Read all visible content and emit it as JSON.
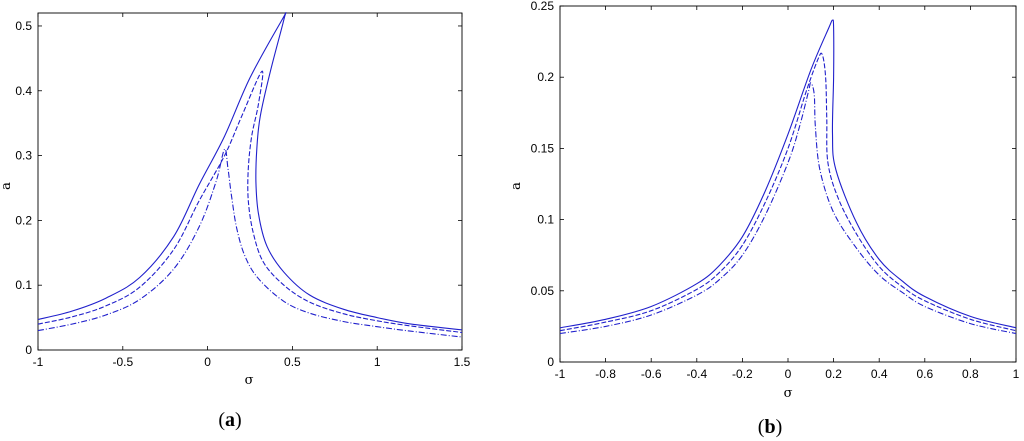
{
  "chart_data": [
    {
      "type": "line",
      "panel_label": {
        "open": "(",
        "letter": "a",
        "close": ")"
      },
      "xlabel": "σ",
      "ylabel": "a",
      "xlim": [
        -1,
        1.5
      ],
      "ylim": [
        0,
        0.52
      ],
      "x_ticks": [
        -1,
        -0.5,
        0,
        0.5,
        1,
        1.5
      ],
      "x_tick_labels": [
        "-1",
        "-0.5",
        "0",
        "0.5",
        "1",
        "1.5"
      ],
      "y_ticks": [
        0,
        0.1,
        0.2,
        0.3,
        0.4,
        0.5
      ],
      "y_tick_labels": [
        "0",
        "0.1",
        "0.2",
        "0.3",
        "0.4",
        "0.5"
      ],
      "grid": false,
      "color": "#2020cc",
      "series": [
        {
          "style": "solid",
          "points": [
            [
              -1,
              0.047
            ],
            [
              -0.8,
              0.06
            ],
            [
              -0.6,
              0.08
            ],
            [
              -0.4,
              0.112
            ],
            [
              -0.2,
              0.175
            ],
            [
              -0.05,
              0.255
            ],
            [
              0.1,
              0.33
            ],
            [
              0.25,
              0.42
            ],
            [
              0.44,
              0.51
            ],
            [
              0.45,
              0.51
            ],
            [
              0.37,
              0.43
            ],
            [
              0.31,
              0.36
            ],
            [
              0.29,
              0.31
            ],
            [
              0.285,
              0.26
            ],
            [
              0.3,
              0.21
            ],
            [
              0.35,
              0.16
            ],
            [
              0.45,
              0.12
            ],
            [
              0.6,
              0.085
            ],
            [
              0.8,
              0.063
            ],
            [
              1,
              0.05
            ],
            [
              1.2,
              0.04
            ],
            [
              1.5,
              0.031
            ]
          ]
        },
        {
          "style": "dashed",
          "points": [
            [
              -1,
              0.04
            ],
            [
              -0.8,
              0.051
            ],
            [
              -0.6,
              0.068
            ],
            [
              -0.4,
              0.097
            ],
            [
              -0.2,
              0.155
            ],
            [
              -0.05,
              0.23
            ],
            [
              0.1,
              0.3
            ],
            [
              0.2,
              0.36
            ],
            [
              0.32,
              0.43
            ],
            [
              0.3,
              0.38
            ],
            [
              0.26,
              0.33
            ],
            [
              0.24,
              0.28
            ],
            [
              0.24,
              0.23
            ],
            [
              0.27,
              0.18
            ],
            [
              0.33,
              0.135
            ],
            [
              0.45,
              0.1
            ],
            [
              0.6,
              0.074
            ],
            [
              0.8,
              0.056
            ],
            [
              1,
              0.045
            ],
            [
              1.2,
              0.037
            ],
            [
              1.5,
              0.027
            ]
          ]
        },
        {
          "style": "dashdot",
          "points": [
            [
              -1,
              0.03
            ],
            [
              -0.8,
              0.04
            ],
            [
              -0.6,
              0.054
            ],
            [
              -0.4,
              0.078
            ],
            [
              -0.2,
              0.125
            ],
            [
              -0.05,
              0.19
            ],
            [
              0.05,
              0.26
            ],
            [
              0.1,
              0.31
            ],
            [
              0.12,
              0.28
            ],
            [
              0.14,
              0.24
            ],
            [
              0.17,
              0.19
            ],
            [
              0.22,
              0.145
            ],
            [
              0.3,
              0.11
            ],
            [
              0.45,
              0.075
            ],
            [
              0.6,
              0.057
            ],
            [
              0.8,
              0.044
            ],
            [
              1,
              0.036
            ],
            [
              1.2,
              0.029
            ],
            [
              1.5,
              0.02
            ]
          ]
        }
      ]
    },
    {
      "type": "line",
      "panel_label": {
        "open": "(",
        "letter": "b",
        "close": ")"
      },
      "xlabel": "σ",
      "ylabel": "a",
      "xlim": [
        -1,
        1
      ],
      "ylim": [
        0,
        0.25
      ],
      "x_ticks": [
        -1,
        -0.8,
        -0.6,
        -0.4,
        -0.2,
        0,
        0.2,
        0.4,
        0.6,
        0.8,
        1
      ],
      "x_tick_labels": [
        "-1",
        "-0.8",
        "-0.6",
        "-0.4",
        "-0.2",
        "0",
        "0.2",
        "0.4",
        "0.6",
        "0.8",
        "1"
      ],
      "y_ticks": [
        0,
        0.05,
        0.1,
        0.15,
        0.2,
        0.25
      ],
      "y_tick_labels": [
        "0",
        "0.05",
        "0.1",
        "0.15",
        "0.2",
        "0.25"
      ],
      "grid": false,
      "color": "#2020cc",
      "series": [
        {
          "style": "solid",
          "points": [
            [
              -1,
              0.024
            ],
            [
              -0.8,
              0.03
            ],
            [
              -0.6,
              0.039
            ],
            [
              -0.4,
              0.055
            ],
            [
              -0.3,
              0.068
            ],
            [
              -0.2,
              0.088
            ],
            [
              -0.1,
              0.12
            ],
            [
              0,
              0.16
            ],
            [
              0.1,
              0.205
            ],
            [
              0.18,
              0.235
            ],
            [
              0.195,
              0.24
            ],
            [
              0.2,
              0.235
            ],
            [
              0.2,
              0.2
            ],
            [
              0.195,
              0.16
            ],
            [
              0.21,
              0.135
            ],
            [
              0.3,
              0.098
            ],
            [
              0.4,
              0.072
            ],
            [
              0.5,
              0.057
            ],
            [
              0.6,
              0.046
            ],
            [
              0.8,
              0.032
            ],
            [
              1,
              0.024
            ]
          ]
        },
        {
          "style": "dashed",
          "points": [
            [
              -1,
              0.022
            ],
            [
              -0.8,
              0.028
            ],
            [
              -0.6,
              0.036
            ],
            [
              -0.4,
              0.051
            ],
            [
              -0.3,
              0.063
            ],
            [
              -0.2,
              0.082
            ],
            [
              -0.1,
              0.112
            ],
            [
              0,
              0.15
            ],
            [
              0.08,
              0.19
            ],
            [
              0.13,
              0.212
            ],
            [
              0.15,
              0.216
            ],
            [
              0.165,
              0.2
            ],
            [
              0.17,
              0.17
            ],
            [
              0.175,
              0.14
            ],
            [
              0.22,
              0.115
            ],
            [
              0.3,
              0.09
            ],
            [
              0.4,
              0.067
            ],
            [
              0.5,
              0.053
            ],
            [
              0.6,
              0.043
            ],
            [
              0.8,
              0.03
            ],
            [
              1,
              0.022
            ]
          ]
        },
        {
          "style": "dashdot",
          "points": [
            [
              -1,
              0.02
            ],
            [
              -0.8,
              0.025
            ],
            [
              -0.6,
              0.033
            ],
            [
              -0.4,
              0.047
            ],
            [
              -0.3,
              0.058
            ],
            [
              -0.2,
              0.075
            ],
            [
              -0.1,
              0.103
            ],
            [
              0,
              0.14
            ],
            [
              0.05,
              0.165
            ],
            [
              0.09,
              0.19
            ],
            [
              0.1,
              0.196
            ],
            [
              0.115,
              0.188
            ],
            [
              0.12,
              0.165
            ],
            [
              0.14,
              0.135
            ],
            [
              0.2,
              0.105
            ],
            [
              0.3,
              0.08
            ],
            [
              0.4,
              0.061
            ],
            [
              0.5,
              0.049
            ],
            [
              0.6,
              0.039
            ],
            [
              0.8,
              0.027
            ],
            [
              1,
              0.02
            ]
          ]
        }
      ]
    }
  ]
}
